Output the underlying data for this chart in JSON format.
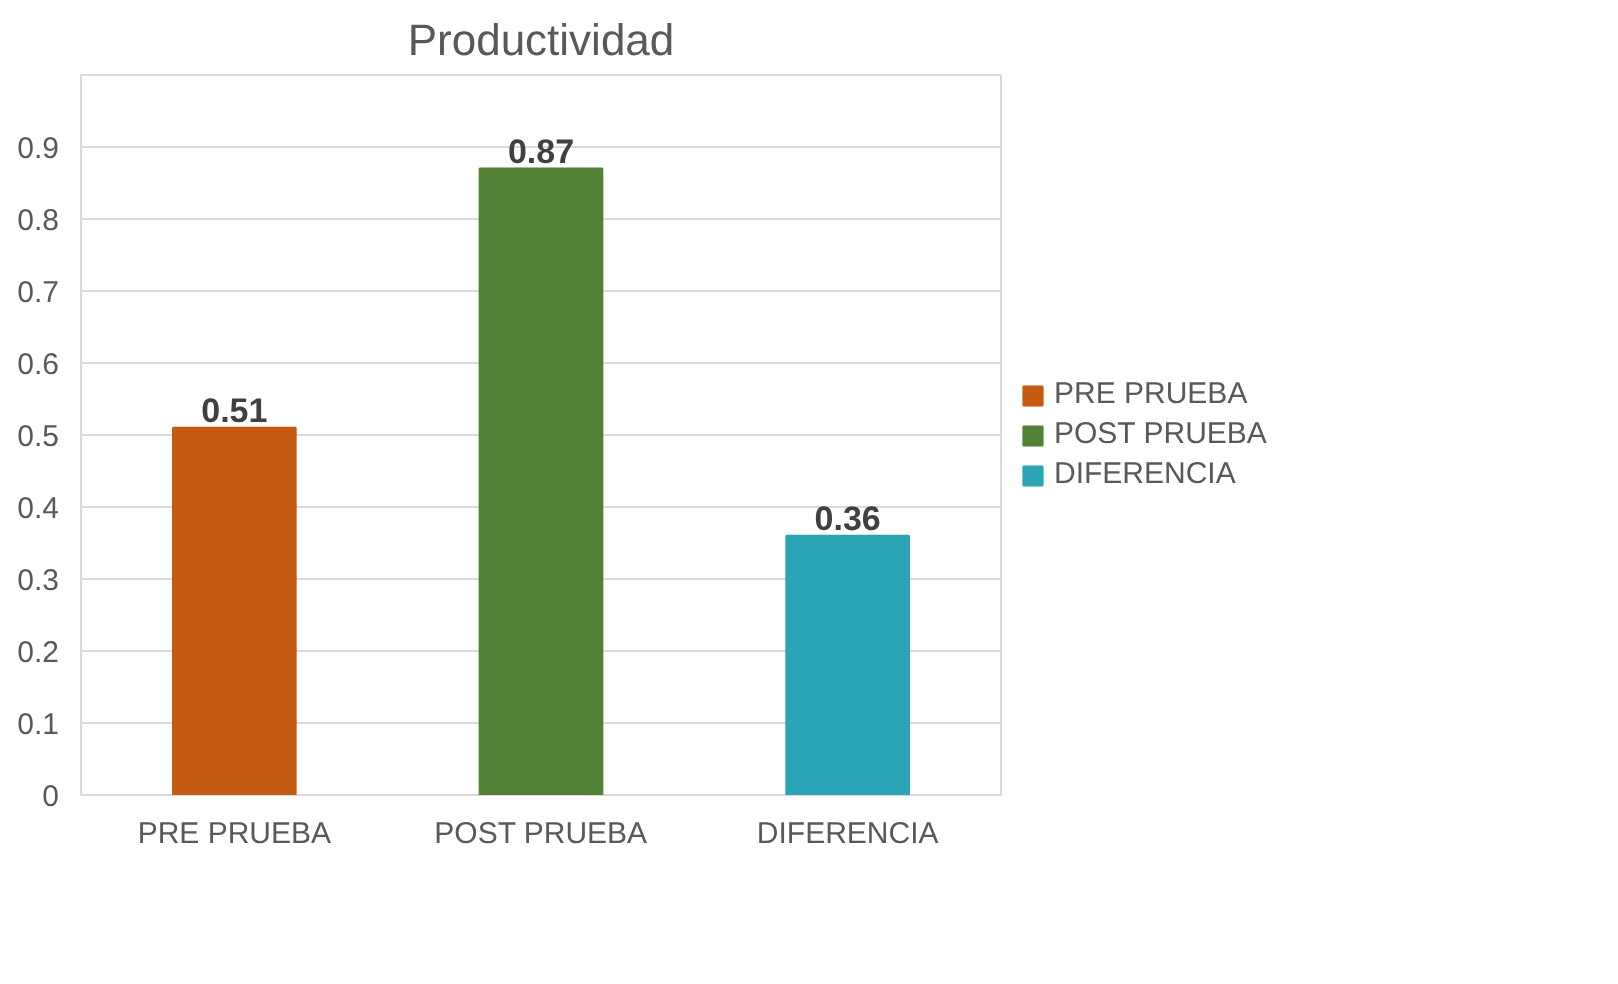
{
  "chart_data": {
    "type": "bar",
    "title": "Productividad",
    "categories": [
      "PRE PRUEBA",
      "POST PRUEBA",
      "DIFERENCIA"
    ],
    "series": [
      {
        "name": "PRE PRUEBA",
        "color": "#c55a11",
        "values": [
          0.51,
          null,
          null
        ]
      },
      {
        "name": "POST PRUEBA",
        "color": "#538135",
        "values": [
          null,
          0.87,
          null
        ]
      },
      {
        "name": "DIFERENCIA",
        "color": "#2ba5b5",
        "values": [
          null,
          null,
          0.36
        ]
      }
    ],
    "ylim": [
      0,
      1
    ],
    "yticks": [
      0,
      0.1,
      0.2,
      0.3,
      0.4,
      0.5,
      0.6,
      0.7,
      0.8,
      0.9,
      {
        "value": 1,
        "label": null
      }
    ],
    "grid": "y",
    "legend": "right",
    "data_labels": true
  }
}
